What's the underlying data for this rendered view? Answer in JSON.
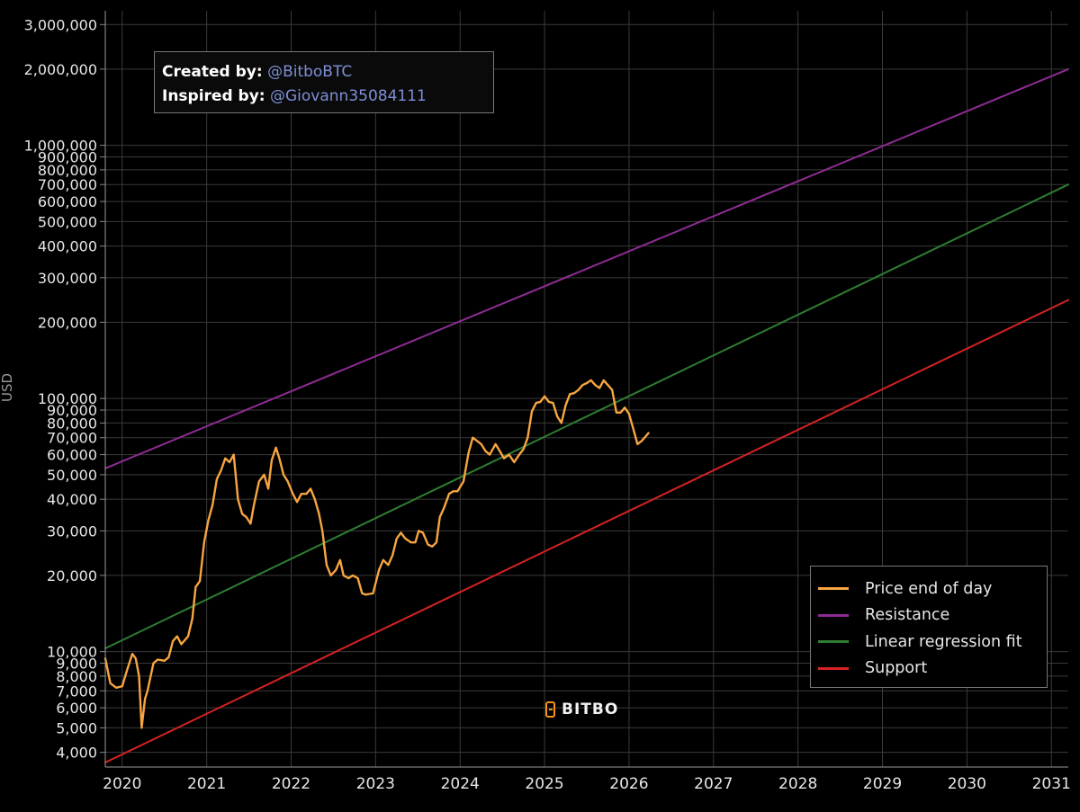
{
  "credits": {
    "created_label": "Created by:",
    "created_handle": "@BitboBTC",
    "inspired_label": "Inspired by:",
    "inspired_handle": "@Giovann35084111"
  },
  "watermark": "BITBO",
  "watermark_icon": "bitbo-logo-icon",
  "colors": {
    "price": "#f7a540",
    "resistance": "#8e2c93",
    "regression": "#2e7d32",
    "support": "#d62222",
    "grid": "#3a3a3a",
    "text": "#e6e6e6"
  },
  "chart_data": {
    "type": "line",
    "title": "",
    "xlabel": "",
    "ylabel": "USD",
    "y_scale": "log",
    "xlim": [
      2019.8,
      2031.2
    ],
    "ylim": [
      3500,
      3400000
    ],
    "grid": true,
    "legend_position": "bottom-right",
    "x_ticks": [
      {
        "value": 2020,
        "label": "2020"
      },
      {
        "value": 2021,
        "label": "2021"
      },
      {
        "value": 2022,
        "label": "2022"
      },
      {
        "value": 2023,
        "label": "2023"
      },
      {
        "value": 2024,
        "label": "2024"
      },
      {
        "value": 2025,
        "label": "2025"
      },
      {
        "value": 2026,
        "label": "2026"
      },
      {
        "value": 2027,
        "label": "2027"
      },
      {
        "value": 2028,
        "label": "2028"
      },
      {
        "value": 2029,
        "label": "2029"
      },
      {
        "value": 2030,
        "label": "2030"
      },
      {
        "value": 2031,
        "label": "2031"
      }
    ],
    "y_ticks": [
      {
        "value": 3000000,
        "label": "3,000,000"
      },
      {
        "value": 2000000,
        "label": "2,000,000"
      },
      {
        "value": 1000000,
        "label": "1,000,000"
      },
      {
        "value": 900000,
        "label": "900,000"
      },
      {
        "value": 800000,
        "label": "800,000"
      },
      {
        "value": 700000,
        "label": "700,000"
      },
      {
        "value": 600000,
        "label": "600,000"
      },
      {
        "value": 500000,
        "label": "500,000"
      },
      {
        "value": 400000,
        "label": "400,000"
      },
      {
        "value": 300000,
        "label": "300,000"
      },
      {
        "value": 200000,
        "label": "200,000"
      },
      {
        "value": 100000,
        "label": "100,000"
      },
      {
        "value": 90000,
        "label": "90,000"
      },
      {
        "value": 80000,
        "label": "80,000"
      },
      {
        "value": 70000,
        "label": "70,000"
      },
      {
        "value": 60000,
        "label": "60,000"
      },
      {
        "value": 50000,
        "label": "50,000"
      },
      {
        "value": 40000,
        "label": "40,000"
      },
      {
        "value": 30000,
        "label": "30,000"
      },
      {
        "value": 20000,
        "label": "20,000"
      },
      {
        "value": 10000,
        "label": "10,000"
      },
      {
        "value": 9000,
        "label": "9,000"
      },
      {
        "value": 8000,
        "label": "8,000"
      },
      {
        "value": 7000,
        "label": "7,000"
      },
      {
        "value": 6000,
        "label": "6,000"
      },
      {
        "value": 5000,
        "label": "5,000"
      },
      {
        "value": 4000,
        "label": "4,000"
      }
    ],
    "series": [
      {
        "name": "Price end of day",
        "color": "#f7a540",
        "kind": "price",
        "x": [
          2019.8,
          2019.86,
          2019.93,
          2020.0,
          2020.06,
          2020.12,
          2020.16,
          2020.2,
          2020.23,
          2020.27,
          2020.3,
          2020.37,
          2020.42,
          2020.5,
          2020.55,
          2020.6,
          2020.65,
          2020.7,
          2020.78,
          2020.83,
          2020.87,
          2020.92,
          2020.97,
          2021.02,
          2021.07,
          2021.12,
          2021.17,
          2021.22,
          2021.27,
          2021.32,
          2021.37,
          2021.42,
          2021.47,
          2021.52,
          2021.56,
          2021.62,
          2021.68,
          2021.73,
          2021.77,
          2021.82,
          2021.86,
          2021.91,
          2021.96,
          2022.02,
          2022.07,
          2022.12,
          2022.18,
          2022.23,
          2022.28,
          2022.33,
          2022.37,
          2022.42,
          2022.47,
          2022.53,
          2022.58,
          2022.62,
          2022.68,
          2022.73,
          2022.79,
          2022.84,
          2022.88,
          2022.93,
          2022.97,
          2023.04,
          2023.09,
          2023.15,
          2023.2,
          2023.25,
          2023.3,
          2023.35,
          2023.42,
          2023.47,
          2023.51,
          2023.56,
          2023.62,
          2023.67,
          2023.72,
          2023.76,
          2023.81,
          2023.87,
          2023.92,
          2023.97,
          2024.04,
          2024.1,
          2024.15,
          2024.2,
          2024.25,
          2024.3,
          2024.35,
          2024.42,
          2024.47,
          2024.52,
          2024.58,
          2024.64,
          2024.7,
          2024.75,
          2024.8,
          2024.85,
          2024.9,
          2024.95,
          2025.0,
          2025.05,
          2025.1,
          2025.15,
          2025.2,
          2025.25,
          2025.3,
          2025.35,
          2025.4,
          2025.45,
          2025.5,
          2025.55,
          2025.6,
          2025.65,
          2025.7,
          2025.76,
          2025.8,
          2025.85,
          2025.9,
          2025.95,
          2026.0,
          2026.05,
          2026.1,
          2026.15,
          2026.2,
          2026.23
        ],
        "y": [
          9400,
          7500,
          7200,
          7300,
          8500,
          9800,
          9400,
          8000,
          5000,
          6500,
          7000,
          9000,
          9300,
          9200,
          9500,
          11000,
          11500,
          10700,
          11500,
          13500,
          18000,
          19000,
          27000,
          33000,
          38000,
          48000,
          52000,
          58000,
          56000,
          60000,
          40000,
          35000,
          34000,
          32000,
          38000,
          47000,
          50000,
          44000,
          57000,
          64000,
          58000,
          50000,
          47000,
          42000,
          39000,
          42000,
          42000,
          44000,
          40000,
          35000,
          30000,
          22000,
          20000,
          21000,
          23000,
          20000,
          19500,
          20000,
          19500,
          17000,
          16800,
          16900,
          17000,
          21000,
          23000,
          22000,
          24000,
          28000,
          29500,
          28000,
          27000,
          27000,
          30000,
          29500,
          26500,
          26000,
          27000,
          34000,
          37000,
          42000,
          43000,
          43000,
          47000,
          61000,
          70000,
          68000,
          66000,
          62000,
          60000,
          66000,
          62000,
          58000,
          60000,
          56000,
          60000,
          63000,
          70000,
          89000,
          96000,
          97000,
          102000,
          97000,
          96000,
          85000,
          80000,
          94000,
          104000,
          105000,
          108000,
          113000,
          115000,
          118000,
          113000,
          110000,
          118000,
          112000,
          108000,
          88000,
          88000,
          92000,
          87000,
          76000,
          66000,
          68000,
          71000,
          73000
        ]
      },
      {
        "name": "Resistance",
        "color": "#8e2c93",
        "kind": "line",
        "x": [
          2019.8,
          2031.2
        ],
        "y": [
          53000,
          2000000
        ]
      },
      {
        "name": "Linear regression fit",
        "color": "#2e7d32",
        "kind": "line",
        "x": [
          2019.8,
          2031.2
        ],
        "y": [
          10300,
          700000
        ]
      },
      {
        "name": "Support",
        "color": "#d62222",
        "kind": "line",
        "x": [
          2019.8,
          2031.2
        ],
        "y": [
          3650,
          245000
        ]
      }
    ]
  }
}
